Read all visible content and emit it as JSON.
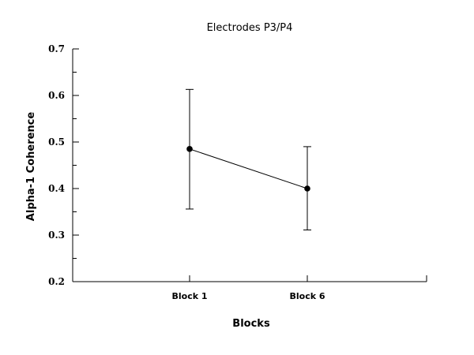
{
  "chart_data": {
    "type": "line",
    "title": "Electrodes P3/P4",
    "xlabel": "Blocks",
    "ylabel": "Alpha-1 Coherence",
    "categories": [
      "Block 1",
      "Block 6"
    ],
    "ylim": [
      0.2,
      0.7
    ],
    "yticks": [
      "0.2",
      "0.3",
      "0.4",
      "0.5",
      "0.6",
      "0.7"
    ],
    "grid": false,
    "series": [
      {
        "values": [
          0.485,
          0.4
        ],
        "error_upper": [
          0.613,
          0.49
        ],
        "error_lower": [
          0.356,
          0.311
        ],
        "color": "#000000"
      }
    ]
  }
}
